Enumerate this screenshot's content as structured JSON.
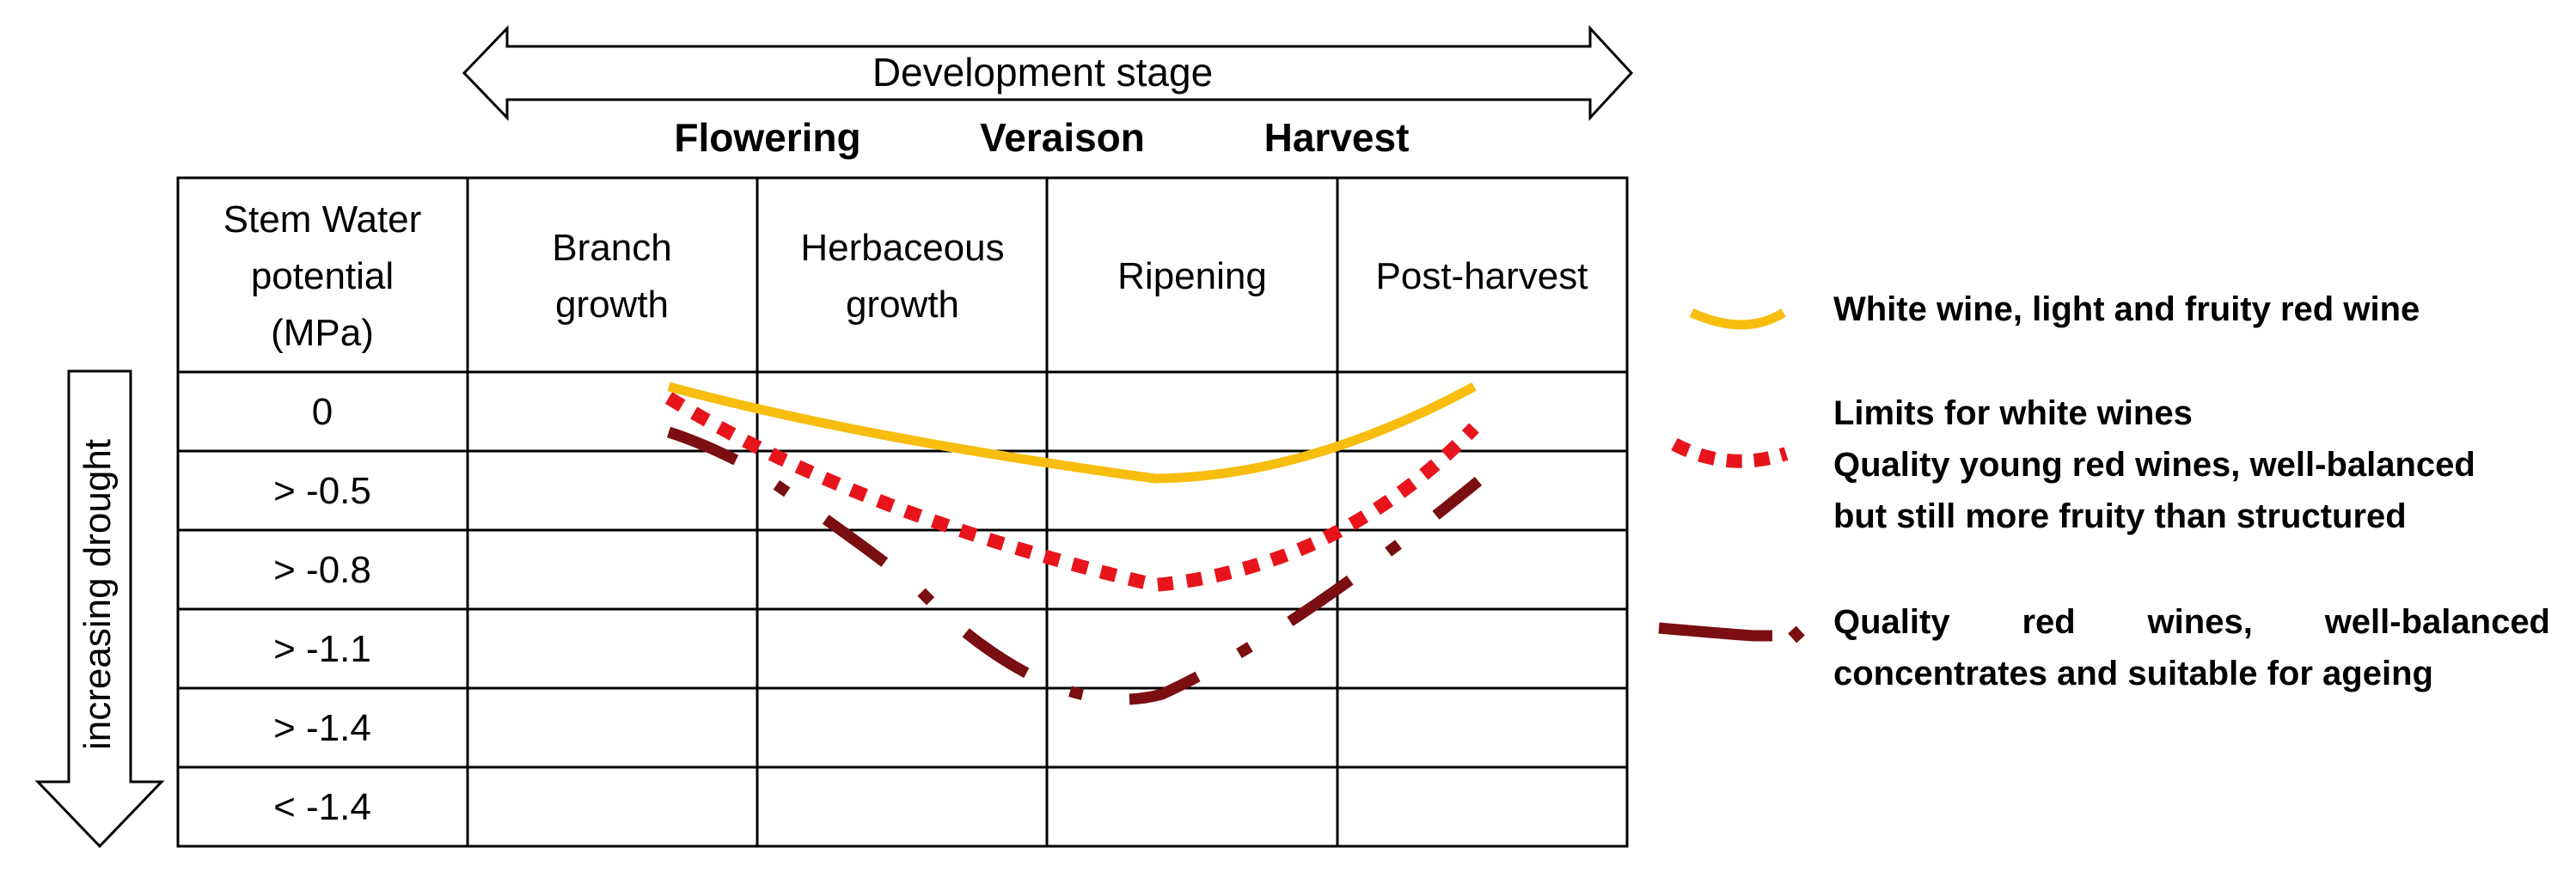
{
  "header": {
    "development_stage": "Development stage",
    "milestones": [
      "Flowering",
      "Veraison",
      "Harvest"
    ]
  },
  "drought_label": "increasing drought",
  "table": {
    "corner_label": [
      "Stem Water",
      "potential",
      "(MPa)"
    ],
    "stages": [
      [
        "Branch",
        "growth"
      ],
      [
        "Herbaceous",
        "growth"
      ],
      [
        "Ripening"
      ],
      [
        "Post-harvest"
      ]
    ],
    "potentials": [
      "0",
      "> -0.5",
      "> -0.8",
      "> -1.1",
      "> -1.4",
      "< -1.4"
    ]
  },
  "legend": [
    {
      "name": "white",
      "color": "#F7BD0F",
      "style": "solid",
      "lines": [
        "White wine, light and fruity red wine"
      ]
    },
    {
      "name": "young-red",
      "color": "#E8141B",
      "style": "dotted",
      "lines": [
        "Limits for white wines",
        "Quality young red wines, well-balanced",
        "but still more fruity than structured"
      ]
    },
    {
      "name": "quality-red",
      "color": "#7A0E10",
      "style": "dash-dot",
      "lines": [
        "Quality red wines, well-balanced",
        "concentrates and suitable for ageing"
      ]
    }
  ],
  "colors": {
    "grid": "#000000",
    "background": "#FFFFFF"
  }
}
